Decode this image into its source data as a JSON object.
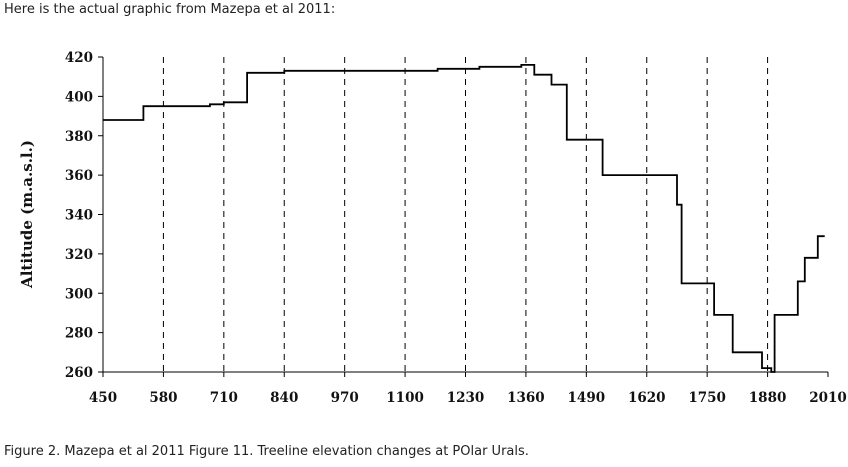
{
  "page": {
    "intro_text": "Here is the actual graphic from Mazepa et al 2011:",
    "caption": "Figure 2. Mazepa et al 2011 Figure 11. Treeline elevation changes at POlar Urals."
  },
  "chart_data": {
    "type": "line",
    "step": true,
    "title": "",
    "xlabel": "",
    "ylabel": "Altitude (m.a.s.l.)",
    "xlim": [
      450,
      2010
    ],
    "ylim": [
      260,
      420
    ],
    "xticks": [
      450,
      580,
      710,
      840,
      970,
      1100,
      1230,
      1360,
      1490,
      1620,
      1750,
      1880,
      2010
    ],
    "yticks": [
      260,
      280,
      300,
      320,
      340,
      360,
      380,
      400,
      420
    ],
    "xtick_labels": [
      "450",
      "580",
      "710",
      "840",
      "970",
      "1100",
      "1230",
      "1360",
      "1490",
      "1620",
      "1750",
      "1880",
      "2010"
    ],
    "ytick_labels": [
      "260",
      "280",
      "300",
      "320",
      "340",
      "360",
      "380",
      "400",
      "420"
    ],
    "vertical_dashed_lines_at": [
      580,
      710,
      840,
      970,
      1100,
      1230,
      1360,
      1490,
      1620,
      1750,
      1880
    ],
    "grid": false,
    "legend": "none",
    "line_color": "#000000",
    "series": [
      {
        "x": [
          450,
          537,
          537,
          680,
          680,
          710,
          710,
          760,
          760,
          840,
          840,
          1060,
          1060,
          1170,
          1170,
          1260,
          1260,
          1350,
          1350,
          1378,
          1378,
          1415,
          1415,
          1448,
          1448,
          1525,
          1525,
          1685,
          1685,
          1695,
          1695,
          1765,
          1765,
          1805,
          1805,
          1868,
          1868,
          1888,
          1888,
          1895,
          1895,
          1945,
          1945,
          1960,
          1960,
          1988,
          1988,
          2003
        ],
        "y": [
          388,
          388,
          395,
          395,
          396,
          396,
          397,
          397,
          412,
          412,
          413,
          413,
          413,
          413,
          414,
          414,
          415,
          415,
          416,
          416,
          411,
          411,
          406,
          406,
          378,
          378,
          360,
          360,
          345,
          345,
          305,
          305,
          289,
          289,
          270,
          270,
          262,
          262,
          260,
          260,
          289,
          289,
          306,
          306,
          318,
          318,
          329,
          329
        ]
      }
    ]
  }
}
